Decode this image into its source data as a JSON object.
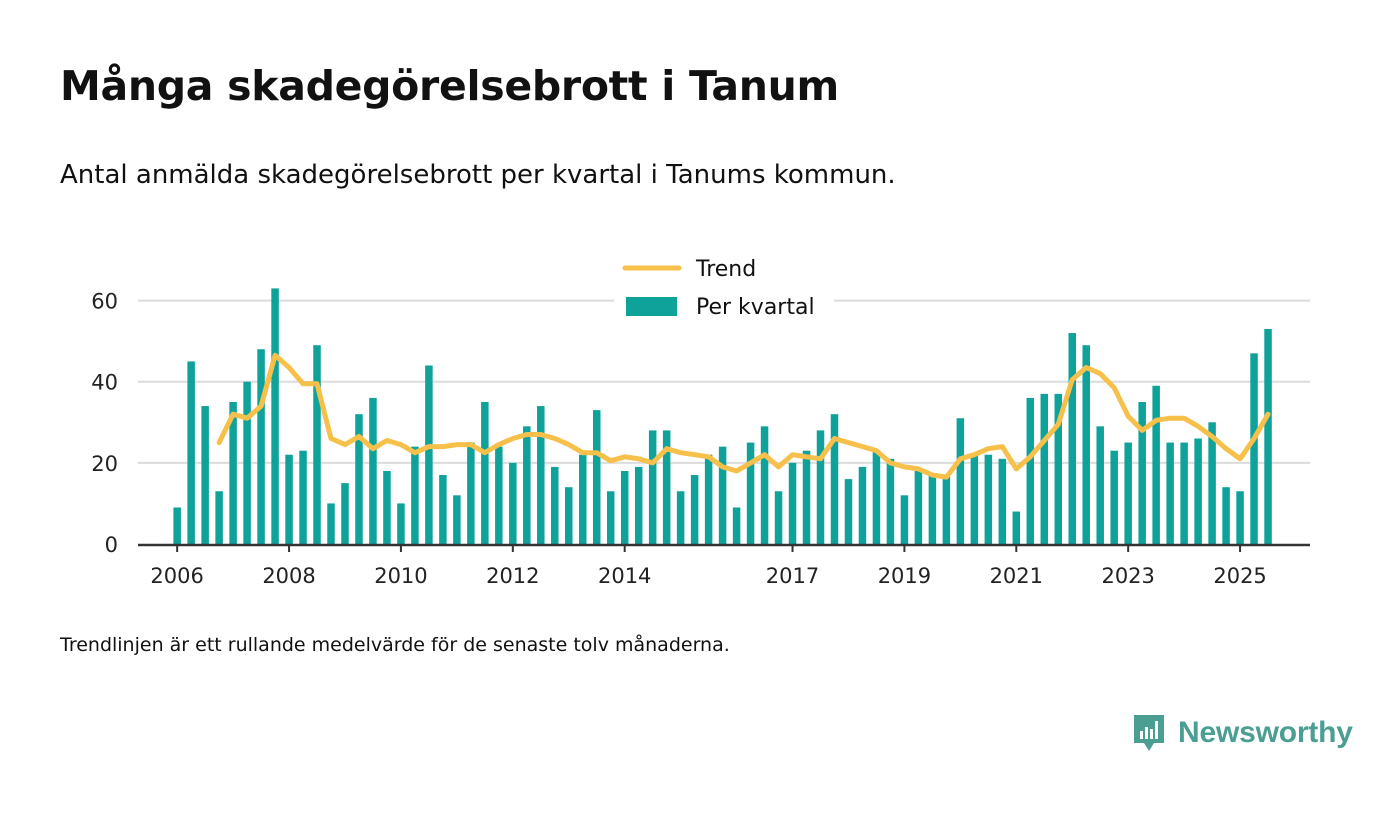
{
  "header": {
    "title": "Många skadegörelsebrott i Tanum",
    "subtitle": "Antal anmälda skadegörelsebrott per kvartal i Tanums kommun."
  },
  "footer": {
    "note": "Trendlinjen är ett rullande medelvärde för de senaste tolv månaderna.",
    "brand": "Newsworthy"
  },
  "colors": {
    "bar": "#0fa29a",
    "trend": "#f7c04a",
    "grid": "#dcdcdc",
    "axis": "#333333",
    "brand": "#4a9e92"
  },
  "chart_data": {
    "type": "bar",
    "title": "Många skadegörelsebrott i Tanum",
    "xlabel": "",
    "ylabel": "",
    "ylim": [
      0,
      70
    ],
    "xlim": [
      2005.3,
      2026.25
    ],
    "yticks": [
      0,
      20,
      40,
      60
    ],
    "xticks": [
      {
        "value": 2006.0,
        "label": "2006"
      },
      {
        "value": 2008.0,
        "label": "2008"
      },
      {
        "value": 2010.0,
        "label": "2010"
      },
      {
        "value": 2012.0,
        "label": "2012"
      },
      {
        "value": 2014.0,
        "label": "2014"
      },
      {
        "value": 2017.0,
        "label": "2017"
      },
      {
        "value": 2019.0,
        "label": "2019"
      },
      {
        "value": 2021.0,
        "label": "2021"
      },
      {
        "value": 2023.0,
        "label": "2023"
      },
      {
        "value": 2025.0,
        "label": "2025"
      }
    ],
    "grid": true,
    "legend_position": "top-center",
    "start_quarter": 2006.0,
    "quarter_step": 0.25,
    "series": [
      {
        "name": "Per kvartal",
        "type": "bar",
        "values": [
          9,
          45,
          34,
          13,
          35,
          40,
          48,
          63,
          22,
          23,
          49,
          10,
          15,
          32,
          36,
          18,
          10,
          24,
          44,
          17,
          12,
          25,
          35,
          24,
          20,
          29,
          34,
          19,
          14,
          22,
          33,
          13,
          18,
          19,
          28,
          28,
          13,
          17,
          22,
          24,
          9,
          25,
          29,
          13,
          20,
          23,
          28,
          32,
          16,
          19,
          23,
          21,
          12,
          18,
          17,
          17,
          31,
          22,
          22,
          21,
          8,
          36,
          37,
          37,
          52,
          49,
          29,
          23,
          25,
          35,
          39,
          25,
          25,
          26,
          30,
          14,
          13,
          47,
          53
        ]
      },
      {
        "name": "Trend",
        "type": "line",
        "values": [
          null,
          null,
          null,
          25,
          32,
          31,
          34,
          46.5,
          43.5,
          39.5,
          39.5,
          26,
          24.5,
          26.5,
          23.5,
          25.5,
          24.5,
          22.5,
          24,
          24,
          24.5,
          24.5,
          22.5,
          24.5,
          26,
          27,
          27,
          26,
          24.5,
          22.5,
          22.5,
          20.5,
          21.5,
          21,
          20,
          23.5,
          22.5,
          22,
          21.5,
          19,
          18,
          20,
          22,
          19,
          22,
          21.5,
          21,
          26,
          25,
          24,
          23,
          20,
          19,
          18.5,
          17,
          16.5,
          21,
          22,
          23.5,
          24,
          18.5,
          21.5,
          25.5,
          29.5,
          40.5,
          43.5,
          42,
          38.5,
          31.5,
          28,
          30.5,
          31,
          31,
          29,
          26.5,
          23.5,
          21,
          26,
          32
        ]
      }
    ]
  }
}
